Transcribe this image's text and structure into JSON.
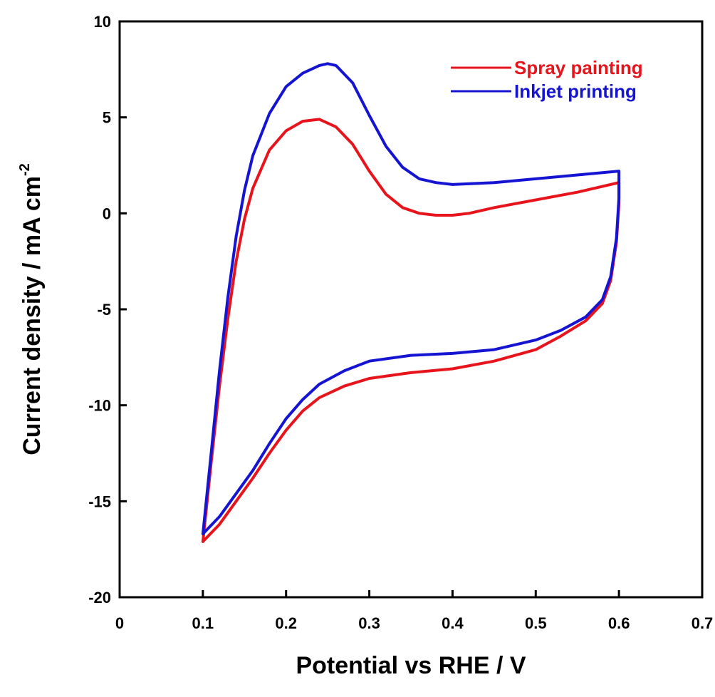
{
  "chart_data": {
    "type": "line",
    "xlabel": "Potential vs RHE / V",
    "ylabel": "Current density / mA cm",
    "ylabel_superscript": "-2",
    "xlim": [
      0,
      0.7
    ],
    "ylim": [
      -20,
      10
    ],
    "x_ticks": [
      0,
      0.1,
      0.2,
      0.3,
      0.4,
      0.5,
      0.6,
      0.7
    ],
    "x_tick_labels": [
      "0",
      "0.1",
      "0.2",
      "0.3",
      "0.4",
      "0.5",
      "0.6",
      "0.7"
    ],
    "y_ticks": [
      -20,
      -15,
      -10,
      -5,
      0,
      5,
      10
    ],
    "y_tick_labels": [
      "-20",
      "-15",
      "-10",
      "-5",
      "0",
      "5",
      "10"
    ],
    "grid": false,
    "legend_position": "top-right",
    "series": [
      {
        "name": "Spray painting",
        "color": "#e8141c",
        "points": [
          [
            0.1,
            -17.1
          ],
          [
            0.11,
            -13.0
          ],
          [
            0.12,
            -9.0
          ],
          [
            0.13,
            -5.5
          ],
          [
            0.14,
            -2.5
          ],
          [
            0.15,
            -0.3
          ],
          [
            0.16,
            1.3
          ],
          [
            0.18,
            3.3
          ],
          [
            0.2,
            4.3
          ],
          [
            0.22,
            4.8
          ],
          [
            0.24,
            4.9
          ],
          [
            0.26,
            4.5
          ],
          [
            0.28,
            3.6
          ],
          [
            0.3,
            2.2
          ],
          [
            0.32,
            1.0
          ],
          [
            0.34,
            0.3
          ],
          [
            0.36,
            0.0
          ],
          [
            0.38,
            -0.1
          ],
          [
            0.4,
            -0.1
          ],
          [
            0.42,
            0.0
          ],
          [
            0.45,
            0.3
          ],
          [
            0.5,
            0.7
          ],
          [
            0.55,
            1.1
          ],
          [
            0.6,
            1.6
          ],
          [
            0.6,
            0.5
          ],
          [
            0.597,
            -1.5
          ],
          [
            0.59,
            -3.5
          ],
          [
            0.58,
            -4.7
          ],
          [
            0.56,
            -5.6
          ],
          [
            0.53,
            -6.4
          ],
          [
            0.5,
            -7.1
          ],
          [
            0.45,
            -7.7
          ],
          [
            0.4,
            -8.1
          ],
          [
            0.35,
            -8.3
          ],
          [
            0.3,
            -8.6
          ],
          [
            0.27,
            -9.0
          ],
          [
            0.24,
            -9.6
          ],
          [
            0.22,
            -10.3
          ],
          [
            0.2,
            -11.3
          ],
          [
            0.18,
            -12.5
          ],
          [
            0.16,
            -13.8
          ],
          [
            0.14,
            -15.0
          ],
          [
            0.12,
            -16.2
          ],
          [
            0.1,
            -17.1
          ]
        ]
      },
      {
        "name": "Inkjet printing",
        "color": "#1414d2",
        "points": [
          [
            0.1,
            -16.7
          ],
          [
            0.11,
            -12.5
          ],
          [
            0.12,
            -8.2
          ],
          [
            0.13,
            -4.4
          ],
          [
            0.14,
            -1.2
          ],
          [
            0.15,
            1.2
          ],
          [
            0.16,
            3.0
          ],
          [
            0.18,
            5.2
          ],
          [
            0.2,
            6.6
          ],
          [
            0.22,
            7.3
          ],
          [
            0.24,
            7.7
          ],
          [
            0.25,
            7.8
          ],
          [
            0.26,
            7.7
          ],
          [
            0.28,
            6.8
          ],
          [
            0.3,
            5.1
          ],
          [
            0.32,
            3.5
          ],
          [
            0.34,
            2.4
          ],
          [
            0.36,
            1.8
          ],
          [
            0.38,
            1.6
          ],
          [
            0.4,
            1.5
          ],
          [
            0.45,
            1.6
          ],
          [
            0.5,
            1.8
          ],
          [
            0.55,
            2.0
          ],
          [
            0.6,
            2.2
          ],
          [
            0.6,
            0.8
          ],
          [
            0.597,
            -1.3
          ],
          [
            0.59,
            -3.3
          ],
          [
            0.58,
            -4.5
          ],
          [
            0.56,
            -5.4
          ],
          [
            0.53,
            -6.1
          ],
          [
            0.5,
            -6.6
          ],
          [
            0.45,
            -7.1
          ],
          [
            0.4,
            -7.3
          ],
          [
            0.35,
            -7.4
          ],
          [
            0.3,
            -7.7
          ],
          [
            0.27,
            -8.2
          ],
          [
            0.24,
            -8.9
          ],
          [
            0.22,
            -9.7
          ],
          [
            0.2,
            -10.7
          ],
          [
            0.18,
            -12.0
          ],
          [
            0.16,
            -13.4
          ],
          [
            0.14,
            -14.6
          ],
          [
            0.12,
            -15.8
          ],
          [
            0.1,
            -16.7
          ]
        ]
      }
    ]
  }
}
